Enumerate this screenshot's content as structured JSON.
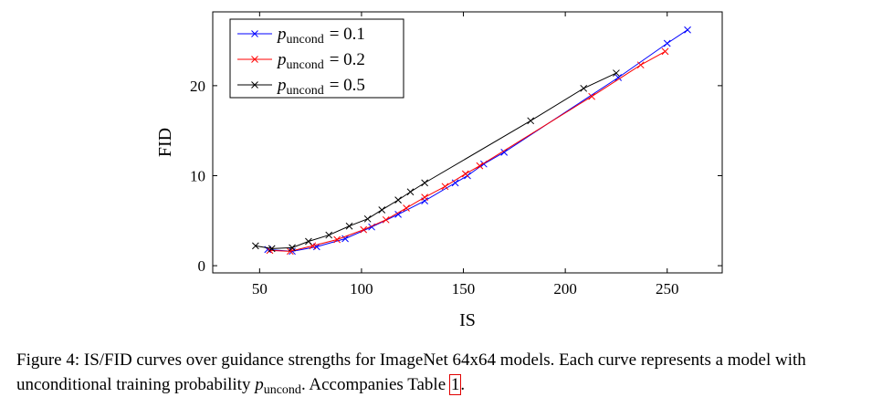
{
  "chart_data": {
    "type": "line",
    "xlabel": "IS",
    "ylabel": "FID",
    "xlim": [
      27,
      277
    ],
    "ylim": [
      -0.8,
      28.2
    ],
    "xticks": [
      50,
      100,
      150,
      200,
      250
    ],
    "yticks": [
      0,
      10,
      20
    ],
    "grid": false,
    "legend_position": "top-left",
    "series": [
      {
        "name": "p_uncond = 0.1",
        "legend_main": "p",
        "legend_sub": "uncond",
        "legend_value": "= 0.1",
        "color": "#0000ff",
        "marker": "x",
        "points": [
          [
            54,
            1.8
          ],
          [
            66,
            1.6
          ],
          [
            78,
            2.1
          ],
          [
            92,
            3.0
          ],
          [
            105,
            4.3
          ],
          [
            118,
            5.7
          ],
          [
            131,
            7.2
          ],
          [
            146,
            9.2
          ],
          [
            152,
            10.0
          ],
          [
            160,
            11.3
          ],
          [
            170,
            12.6
          ],
          [
            226,
            20.9
          ],
          [
            250,
            24.7
          ],
          [
            260,
            26.2
          ]
        ]
      },
      {
        "name": "p_uncond = 0.2",
        "legend_main": "p",
        "legend_sub": "uncond",
        "legend_value": "= 0.2",
        "color": "#ff0000",
        "marker": "x",
        "points": [
          [
            55,
            1.7
          ],
          [
            65,
            1.6
          ],
          [
            76,
            2.2
          ],
          [
            88,
            2.9
          ],
          [
            101,
            4.0
          ],
          [
            112,
            5.1
          ],
          [
            122,
            6.4
          ],
          [
            131,
            7.6
          ],
          [
            141,
            8.8
          ],
          [
            151,
            10.2
          ],
          [
            158,
            11.1
          ],
          [
            213,
            18.8
          ],
          [
            237,
            22.3
          ],
          [
            249,
            23.8
          ]
        ]
      },
      {
        "name": "p_uncond = 0.5",
        "legend_main": "p",
        "legend_sub": "uncond",
        "legend_value": "= 0.5",
        "color": "#000000",
        "marker": "x",
        "points": [
          [
            48,
            2.2
          ],
          [
            56,
            1.9
          ],
          [
            66,
            2.0
          ],
          [
            74,
            2.7
          ],
          [
            84,
            3.4
          ],
          [
            94,
            4.4
          ],
          [
            103,
            5.2
          ],
          [
            110,
            6.2
          ],
          [
            118,
            7.3
          ],
          [
            124,
            8.2
          ],
          [
            131,
            9.2
          ],
          [
            183,
            16.1
          ],
          [
            209,
            19.7
          ],
          [
            225,
            21.4
          ]
        ]
      }
    ]
  },
  "caption": {
    "text_before": "Figure 4: IS/FID curves over guidance strengths for ImageNet 64x64 models. Each curve represents a model with unconditional training probability ",
    "math_main": "p",
    "math_sub": "uncond",
    "text_after": ". Accompanies Table ",
    "table_ref": "1",
    "text_end": "."
  }
}
